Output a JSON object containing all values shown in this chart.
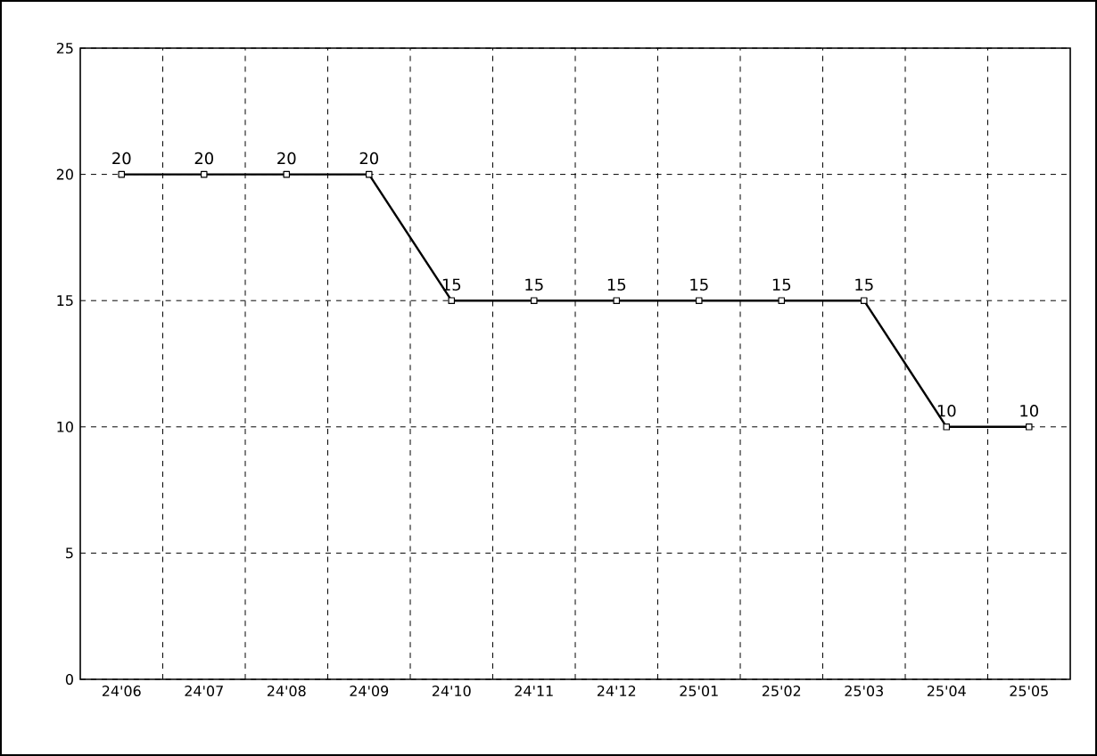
{
  "chart_data": {
    "type": "line",
    "categories": [
      "24'06",
      "24'07",
      "24'08",
      "24'09",
      "24'10",
      "24'11",
      "24'12",
      "25'01",
      "25'02",
      "25'03",
      "25'04",
      "25'05"
    ],
    "values": [
      20,
      20,
      20,
      20,
      15,
      15,
      15,
      15,
      15,
      15,
      10,
      10
    ],
    "color": "#000000",
    "ylim": [
      0,
      25
    ],
    "yticks": [
      0,
      5,
      10,
      15,
      20,
      25
    ],
    "grid": true,
    "marker": "square",
    "line_style": "solid",
    "data_labels": true
  }
}
